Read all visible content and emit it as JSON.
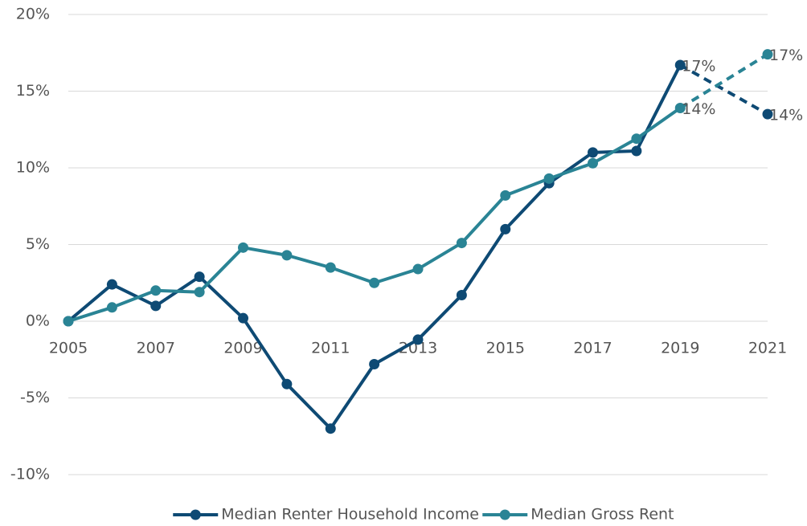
{
  "chart_data": {
    "type": "line",
    "x": [
      2005,
      2006,
      2007,
      2008,
      2009,
      2010,
      2011,
      2012,
      2013,
      2014,
      2015,
      2016,
      2017,
      2018,
      2019,
      2021
    ],
    "xlim": [
      2005,
      2021
    ],
    "xticks": [
      2005,
      2007,
      2009,
      2011,
      2013,
      2015,
      2017,
      2019,
      2021
    ],
    "ylim": [
      -10,
      20
    ],
    "yticks": [
      {
        "value": -10,
        "label": "-10%"
      },
      {
        "value": -5,
        "label": "-5%"
      },
      {
        "value": 0,
        "label": "0%"
      },
      {
        "value": 5,
        "label": "5%"
      },
      {
        "value": 10,
        "label": "10%"
      },
      {
        "value": 15,
        "label": "15%"
      },
      {
        "value": 20,
        "label": "20%"
      }
    ],
    "grid": true,
    "legend": "bottom",
    "series": [
      {
        "name": "Median Renter Household Income",
        "color": "#0e4a74",
        "values": [
          0,
          2.4,
          1.0,
          2.9,
          0.2,
          -4.1,
          -7.0,
          -2.8,
          -1.2,
          1.7,
          6.0,
          9.0,
          11.0,
          11.1,
          16.7,
          13.5
        ],
        "value_labels": [
          null,
          null,
          null,
          null,
          null,
          null,
          null,
          null,
          null,
          null,
          null,
          null,
          null,
          null,
          "17%",
          "14%"
        ]
      },
      {
        "name": "Median Gross Rent",
        "color": "#2a8495",
        "values": [
          0,
          0.9,
          2.0,
          1.9,
          4.8,
          4.3,
          3.5,
          2.5,
          3.4,
          5.1,
          8.2,
          9.3,
          10.3,
          11.9,
          13.9,
          17.4
        ],
        "value_labels": [
          null,
          null,
          null,
          null,
          null,
          null,
          null,
          null,
          null,
          null,
          null,
          null,
          null,
          null,
          "14%",
          "17%"
        ]
      }
    ]
  }
}
